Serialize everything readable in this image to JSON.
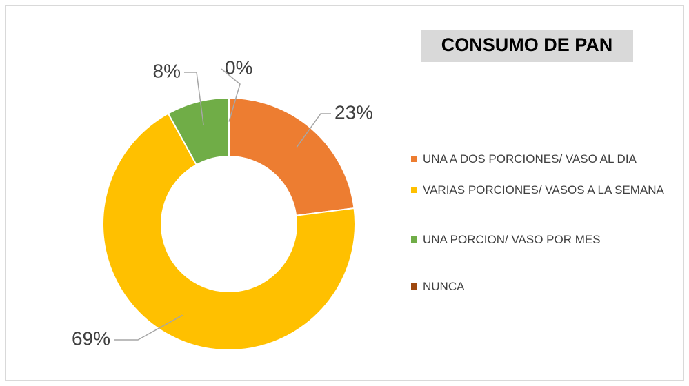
{
  "chart_data": {
    "type": "donut",
    "title": "CONSUMO DE PAN",
    "categories": [
      "UNA A DOS PORCIONES/ VASO AL DIA",
      "VARIAS PORCIONES/ VASOS A LA SEMANA",
      "UNA PORCION/ VASO POR MES",
      "NUNCA"
    ],
    "values": [
      23,
      69,
      8,
      0
    ],
    "value_labels": [
      "23%",
      "69%",
      "8%",
      "0%"
    ],
    "colors": [
      "#ED7D31",
      "#FFC000",
      "#70AD47",
      "#9E480E"
    ],
    "legend": "right"
  }
}
